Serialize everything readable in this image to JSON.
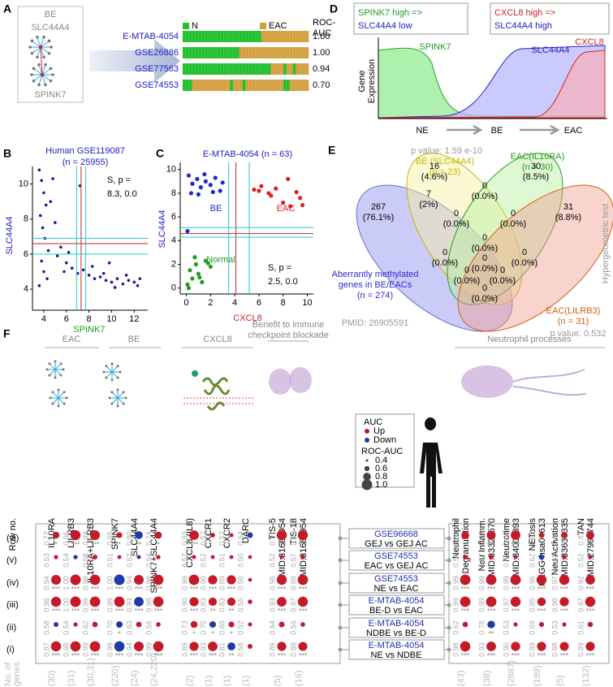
{
  "panel_a": {
    "label": "A",
    "network": {
      "title": "BE",
      "genes": [
        "SLC44A4",
        "SPINK7"
      ]
    },
    "legend": [
      "N",
      "EAC"
    ],
    "legend_colors": [
      "#22c030",
      "#d4a040"
    ],
    "header": [
      "ROC-",
      "AUC"
    ],
    "datasets": [
      {
        "name": "E-MTAB-4054",
        "auc": 1.0,
        "auc_label": "1.00",
        "classes": [
          0,
          0,
          0,
          0,
          0,
          0,
          0,
          0,
          0,
          0,
          0,
          0,
          0,
          0,
          0,
          0,
          0,
          0,
          0,
          0,
          0,
          0,
          0,
          0,
          0,
          1,
          1,
          1,
          1,
          1,
          1,
          1,
          1,
          1,
          1,
          1,
          1,
          1,
          1,
          1
        ]
      },
      {
        "name": "GSE26886",
        "auc": 1.0,
        "auc_label": "1.00",
        "classes": [
          0,
          0,
          0,
          0,
          0,
          0,
          0,
          0,
          0,
          0,
          0,
          0,
          0,
          0,
          0,
          0,
          0,
          0,
          1,
          1,
          1,
          1,
          1,
          1,
          1,
          1,
          1,
          1,
          1,
          1,
          1,
          1,
          1,
          1,
          1,
          1,
          1,
          1,
          1,
          1
        ]
      },
      {
        "name": "GSE77563",
        "auc": 0.94,
        "classes": [
          0,
          0,
          0,
          0,
          0,
          0,
          0,
          0,
          0,
          0,
          0,
          0,
          0,
          0,
          0,
          0,
          0,
          0,
          0,
          0,
          0,
          0,
          0,
          0,
          0,
          0,
          0,
          0,
          1,
          1,
          1,
          1,
          0,
          1,
          1,
          0,
          1,
          1,
          1,
          1
        ]
      },
      {
        "name": "GSE74553",
        "auc": 0.7,
        "auc_label": "0.70",
        "classes": [
          0,
          0,
          0,
          1,
          1,
          1,
          1,
          1,
          1,
          1,
          1,
          1,
          1,
          1,
          1,
          0,
          1,
          1,
          1,
          0,
          1,
          1,
          1,
          1,
          1,
          1,
          1,
          1,
          1,
          1,
          1,
          1,
          0,
          0,
          1,
          1,
          1,
          1,
          1,
          1
        ]
      }
    ]
  },
  "panel_b": {
    "label": "B",
    "title": [
      "Human GSE119087",
      "(n = 25955)"
    ],
    "xlabel": "SPINK7",
    "ylabel": "SLC44A4",
    "annotation": [
      "S, p =",
      "8.3, 0.0"
    ],
    "xlim": [
      3,
      13.2
    ],
    "ylim": [
      2.8,
      11
    ],
    "xticks": [
      4,
      6,
      8,
      10,
      12
    ],
    "yticks": [
      4,
      6,
      8,
      10
    ],
    "color": "#1a1a9a",
    "vlines": [
      {
        "x": 6.9,
        "color": "#22cccc"
      },
      {
        "x": 7.3,
        "color": "#d02020"
      },
      {
        "x": 7.7,
        "color": "#22cccc"
      }
    ],
    "hlines": [
      {
        "y": 6.0,
        "color": "#22cccc"
      },
      {
        "y": 6.6,
        "color": "#d02020"
      },
      {
        "y": 6.9,
        "color": "#22cccc"
      }
    ],
    "x": [
      3.6,
      3.8,
      4.0,
      4.2,
      3.7,
      3.9,
      4.1,
      4.4,
      3.8,
      4.0,
      4.3,
      3.6,
      4.6,
      5.0,
      5.5,
      6.0,
      6.5,
      7.0,
      7.5,
      8.0,
      8.5,
      9.0,
      9.5,
      10.0,
      10.5,
      11.0,
      11.5,
      12.0,
      12.3,
      5.2,
      6.2,
      7.2,
      8.3,
      9.3,
      10.3,
      11.3,
      12.5,
      4.8,
      5.8,
      9.8
    ],
    "y": [
      10.8,
      10.2,
      9.5,
      8.8,
      8.2,
      7.5,
      6.9,
      6.2,
      5.6,
      5.0,
      4.6,
      4.2,
      9.0,
      7.8,
      6.4,
      5.5,
      5.2,
      4.9,
      5.1,
      4.8,
      4.6,
      4.7,
      4.5,
      4.4,
      4.6,
      4.3,
      4.5,
      4.4,
      4.2,
      5.9,
      6.1,
      9.9,
      5.3,
      4.9,
      4.1,
      4.8,
      4.6,
      10.3,
      5.0,
      5.5
    ]
  },
  "panel_c": {
    "label": "C",
    "title": "E-MTAB-4054 (n = 63)",
    "xlabel": "CXCL8",
    "ylabel": "SLC44A4",
    "annotation": [
      "S, p =",
      "2.5, 0.0"
    ],
    "xlim": [
      -0.5,
      10.5
    ],
    "ylim": [
      -0.5,
      10.6
    ],
    "xticks": [
      0,
      2,
      4,
      6,
      8,
      10
    ],
    "yticks": [
      0,
      2,
      4,
      6,
      8,
      10
    ],
    "vlines": [
      {
        "x": 3.5,
        "color": "#22cccc"
      },
      {
        "x": 4.1,
        "color": "#d02020"
      },
      {
        "x": 5.2,
        "color": "#22cccc"
      }
    ],
    "hlines": [
      {
        "y": 4.3,
        "color": "#22cccc"
      },
      {
        "y": 4.6,
        "color": "#d02020"
      },
      {
        "y": 5.1,
        "color": "#22cccc"
      }
    ],
    "series": [
      {
        "name": "Normal",
        "color": "#229a22",
        "x": [
          0.1,
          0.3,
          0.5,
          0.8,
          1.0,
          1.3,
          1.6,
          2.0,
          0.2,
          0.7,
          1.1,
          1.8
        ],
        "y": [
          0.3,
          1.5,
          0.8,
          2.0,
          1.2,
          0.5,
          2.3,
          1.8,
          0.0,
          2.6,
          0.9,
          2.1
        ]
      },
      {
        "name": "BE",
        "color": "#1a2ad0",
        "x": [
          0.2,
          0.5,
          0.9,
          1.2,
          1.6,
          2.0,
          2.4,
          2.8,
          0.4,
          1.0,
          1.5,
          2.2,
          3.0,
          0.1
        ],
        "y": [
          9.5,
          8.8,
          9.2,
          8.5,
          9.0,
          8.7,
          9.3,
          8.2,
          8.0,
          7.9,
          9.6,
          8.1,
          8.9,
          4.8
        ]
      },
      {
        "name": "EAC",
        "color": "#e02020",
        "x": [
          5.6,
          6.2,
          6.8,
          7.4,
          8.0,
          8.6,
          9.1,
          9.4,
          6.0,
          7.0,
          8.4,
          9.6
        ],
        "y": [
          8.3,
          8.6,
          8.0,
          8.4,
          7.2,
          6.9,
          8.1,
          7.6,
          8.2,
          7.8,
          9.2,
          7.0
        ]
      }
    ]
  },
  "panel_d": {
    "label": "D",
    "box1": [
      "SPINK7 high =>",
      "SLC44A4 low"
    ],
    "box2": [
      "CXCL8 high =>",
      "SLC44A4 high"
    ],
    "curves": [
      "SPINK7",
      "SLC44A4",
      "CXCL8"
    ],
    "ylabel": [
      "Gene",
      "Expression"
    ],
    "stages": [
      "NE",
      "BE",
      "EAC"
    ]
  },
  "panel_e": {
    "label": "E",
    "p_top": "p value: 1.59 e-10",
    "p_bottom": "p value: 0.532",
    "test": "Hypergeometric test",
    "sets": [
      {
        "name": "Aberrantly methylated",
        "lines": [
          "genes in BE/EACs",
          "(n = 274)"
        ],
        "color": "#2a2ad0"
      },
      {
        "name": "BE (SLC44A4)",
        "lines": [
          "(n = 23)"
        ],
        "color": "#c8b400"
      },
      {
        "name": "EAC(IL10RA)",
        "lines": [
          "(n = 30)"
        ],
        "color": "#2a9a2a"
      },
      {
        "name": "EAC(LILRB3)",
        "lines": [
          "(n = 31)"
        ],
        "color": "#d06010"
      }
    ],
    "pmid": "PMID: 26905591",
    "regions": [
      {
        "count": 267,
        "pct": "(76.1%)"
      },
      {
        "count": 16,
        "pct": "(4.6%)"
      },
      {
        "count": 30,
        "pct": "(8.5%)"
      },
      {
        "count": 31,
        "pct": "(8.8%)"
      },
      {
        "count": 7,
        "pct": "(2%)"
      },
      {
        "count": 0,
        "pct": "(0.0%)"
      },
      {
        "count": 0,
        "pct": "(0.0%)"
      },
      {
        "count": 0,
        "pct": "(0.0%)"
      },
      {
        "count": 0,
        "pct": "(0.0%)"
      },
      {
        "count": 0,
        "pct": "(0.0%)"
      },
      {
        "count": 0,
        "pct": "(0.0%)"
      },
      {
        "count": 0,
        "pct": "(0.0%)"
      },
      {
        "count": 0,
        "pct": "(0.0%)"
      },
      {
        "count": 0,
        "pct": "(0.0%)"
      },
      {
        "count": 0,
        "pct": "(0.0%)"
      }
    ]
  },
  "panel_f": {
    "label": "F",
    "row_header": "Row no.",
    "genes_header": [
      "No. of",
      "genes"
    ],
    "groups": [
      [
        "EAC"
      ],
      [
        "BE"
      ],
      [
        "CXCL8"
      ],
      [
        "Benefit to immune",
        "checkpoint blockade"
      ],
      [
        "Neutrophil processes"
      ]
    ],
    "columns": [
      [
        "IL10RA"
      ],
      [
        "LILRB3"
      ],
      [
        "IL10RA+LILRB3"
      ],
      [
        "SPINK7"
      ],
      [
        "SLC44A4"
      ],
      [
        "SPINK7+SLC44A4"
      ],
      [
        "CXCL8 (IL8)"
      ],
      [
        "CXCR1"
      ],
      [
        "CXCR2"
      ],
      [
        "DARC"
      ],
      [
        "TIS-5",
        "PMID:31684954"
      ],
      [
        "TIS-18",
        "PMID:31684954"
      ],
      [
        "Neutrophil",
        "Degranulation"
      ],
      [
        "Neu Inflamm.",
        "PMID:33329570"
      ],
      [
        "Neutrotime",
        "PMID:34001893"
      ],
      [
        "NETosis",
        "KEGG-hsa04613"
      ],
      [
        "Neu Activation",
        "PMID:33635335"
      ],
      [
        "TAN",
        "PMID:27999744"
      ]
    ],
    "genes": [
      "(30)",
      "(31)",
      "(30,31)",
      "(220)",
      "(24)",
      "(24,220)",
      "(2)",
      "(1)",
      "(1)",
      "(1)",
      "(5)",
      "(16)",
      "(43)",
      "(38)",
      "(2887)",
      "(189)",
      "(5)",
      "(132)"
    ],
    "legend": {
      "title": "AUC",
      "up": "Up",
      "down": "Down",
      "colors": [
        "#c41a2a",
        "#1f3aa8"
      ],
      "size_title": "ROC-AUC",
      "sizes": [
        0.4,
        0.6,
        0.8,
        1.0
      ],
      "size_labels": [
        "0.4",
        "0.6",
        "0.8",
        "1.0"
      ]
    },
    "rows": [
      {
        "label": "(vi)",
        "dataset": "GSE96668",
        "comparison": "GEJ vs GEJ AC",
        "auc": [
          0.72,
          0.96,
          0.94,
          0.65,
          0.8,
          0.74,
          0.93,
          0.57,
          0.52,
          0.64,
          0.97,
          0.96,
          0.8,
          0.87,
          0.93,
          0.62,
          0.69,
          0.82
        ],
        "auc_labels": [
          "0.72",
          "0.96",
          "0.94",
          "0.65",
          "0.80",
          "0.74",
          "0.93",
          "0.57",
          "0.52",
          "0.64",
          "0.97",
          "0.96",
          "0.80",
          "0.87",
          "0.93",
          "0.62",
          "0.69",
          "0.82"
        ],
        "direction": [
          "Up",
          "Up",
          "Up",
          "Up",
          "Down",
          "Up",
          "Up",
          "Up",
          "Up",
          "Down",
          "Up",
          "Up",
          "Up",
          "Up",
          "Up",
          "Up",
          "Up",
          "Up"
        ],
        "sig": [
          "*",
          "***",
          "***",
          "*",
          "**",
          "*",
          "***",
          "",
          "",
          "",
          "***",
          "***",
          "**",
          "***",
          "***",
          "",
          "*",
          "**"
        ]
      },
      {
        "label": "(v)",
        "dataset": "GSE74553",
        "comparison": "EAC vs GEJ AC",
        "auc": [
          0.53,
          0.54,
          0.58,
          0.51,
          0.52,
          0.54,
          0.52,
          0.52,
          0.51,
          0.5,
          0.52,
          0.57,
          0.58,
          0.57,
          0.51,
          0.62,
          0.55,
          0.52
        ],
        "auc_labels": [
          "0.53",
          "0.54",
          "0.58",
          "0.51",
          "0.52",
          "0.54",
          "0.52",
          "0.52",
          "0.51",
          "0.50",
          "0.52",
          "0.57",
          "0.58",
          "0.57",
          "0.51",
          "0.62",
          "0.55",
          "0.52"
        ],
        "direction": [
          "Up",
          "Down",
          "Up",
          "Up",
          "Down",
          "Up",
          "Up",
          "Up",
          "Up",
          "Up",
          "Up",
          "Up",
          "Up",
          "Up",
          "Up",
          "Down",
          "Up",
          "Up"
        ],
        "sig": [
          "",
          "",
          "",
          "",
          "",
          "",
          "",
          "",
          "",
          "",
          "",
          "",
          "",
          "",
          "",
          "",
          "",
          ""
        ]
      },
      {
        "label": "(iv)",
        "dataset": "GSE74553",
        "comparison": "NE vs EAC",
        "auc": [
          0.94,
          1.0,
          0.99,
          1.0,
          0.94,
          0.98,
          0.99,
          0.9,
          0.89,
          0.5,
          0.96,
          0.98,
          0.99,
          0.99,
          0.99,
          0.96,
          0.97,
          0.92
        ],
        "auc_labels": [
          "0.94",
          "1.00",
          "0.99",
          "1.00",
          "0.94",
          "0.98",
          "0.99",
          "0.90",
          "0.89",
          "0.50",
          "0.96",
          "0.98",
          "0.99",
          "0.99",
          "0.99",
          "0.96",
          "0.97",
          "0.92"
        ],
        "direction": [
          "Up",
          "Up",
          "Up",
          "Down",
          "Up",
          "Up",
          "Up",
          "Up",
          "Up",
          "Up",
          "Up",
          "Up",
          "Up",
          "Up",
          "Up",
          "Up",
          "Up",
          "Up"
        ],
        "sig": [
          "***",
          "***",
          "***",
          "***",
          "***",
          "***",
          "***",
          "***",
          "***",
          "",
          "***",
          "***",
          "***",
          "***",
          "***",
          "***",
          "***",
          "***"
        ]
      },
      {
        "label": "(iii)",
        "dataset": "E-MTAB-4054",
        "comparison": "BE-D vs EAC",
        "auc": [
          0.96,
          1.0,
          0.99,
          0.99,
          0.93,
          0.98,
          0.9,
          0.83,
          0.83,
          0.55,
          0.93,
          0.97,
          0.99,
          0.99,
          0.97,
          0.85,
          0.9,
          0.97
        ],
        "auc_labels": [
          "0.96",
          "1.00",
          "0.99",
          "0.99",
          "0.93",
          "0.98",
          "0.90",
          "0.83",
          "0.83",
          "0.55",
          "0.93",
          "0.97",
          "0.99",
          "0.99",
          "0.97",
          "0.85",
          "0.90",
          "0.97"
        ],
        "direction": [
          "Up",
          "Up",
          "Up",
          "Up",
          "Down",
          "Up",
          "Up",
          "Up",
          "Up",
          "Up",
          "Up",
          "Up",
          "Up",
          "Up",
          "Up",
          "Up",
          "Up",
          "Up"
        ],
        "sig": [
          "***",
          "***",
          "***",
          "***",
          "***",
          "***",
          "***",
          "**",
          "**",
          "",
          "***",
          "***",
          "***",
          "***",
          "***",
          "***",
          "***",
          "***"
        ]
      },
      {
        "label": "(ii)",
        "dataset": "E-MTAB-4054",
        "comparison": "NDBE vs BE-D",
        "auc": [
          0.58,
          0.54,
          0.62,
          0.7,
          0.63,
          0.56,
          0.73,
          0.7,
          0.65,
          0.52,
          0.64,
          0.56,
          0.62,
          0.78,
          0.53,
          0.59,
          0.53,
          0.61
        ],
        "auc_labels": [
          "0.58",
          "0.54",
          "0.62",
          "0.70",
          "0.63",
          "0.56",
          "0.73",
          "0.70",
          "0.65",
          "0.52",
          "0.64",
          "0.56",
          "0.62",
          "0.78",
          "0.53",
          "0.59",
          "0.53",
          "0.61"
        ],
        "direction": [
          "Down",
          "Up",
          "Up",
          "Down",
          "Up",
          "Up",
          "Up",
          "Down",
          "Up",
          "Up",
          "Up",
          "Up",
          "Up",
          "Down",
          "Up",
          "Up",
          "Up",
          "Up"
        ],
        "sig": [
          "",
          "",
          "",
          "*",
          "",
          "",
          "*",
          "*",
          "*",
          "",
          "",
          "",
          "",
          "**",
          "",
          "",
          "",
          ""
        ]
      },
      {
        "label": "(i)",
        "dataset": "E-MTAB-4054",
        "comparison": "NE vs NDBE",
        "auc": [
          0.97,
          0.98,
          0.99,
          0.98,
          0.94,
          0.99,
          0.89,
          0.93,
          0.81,
          0.58,
          0.89,
          0.88,
          0.98,
          0.93,
          0.9,
          0.89,
          0.88,
          0.89
        ],
        "auc_labels": [
          "0.97",
          "0.98",
          "0.99",
          "0.98",
          "0.94",
          "0.99",
          "0.89",
          "0.93",
          "0.81",
          "0.58",
          "0.89",
          "0.88",
          "0.98",
          "0.93",
          "0.90",
          "0.89",
          "0.88",
          "0.89"
        ],
        "direction": [
          "Up",
          "Up",
          "Up",
          "Down",
          "Up",
          "Up",
          "Up",
          "Up",
          "Down",
          "Up",
          "Up",
          "Up",
          "Up",
          "Up",
          "Up",
          "Up",
          "Up",
          "Up"
        ],
        "sig": [
          "***",
          "***",
          "***",
          "***",
          "***",
          "***",
          "***",
          "***",
          "**",
          "",
          "***",
          "***",
          "***",
          "***",
          "***",
          "***",
          "***",
          "***"
        ]
      }
    ]
  }
}
